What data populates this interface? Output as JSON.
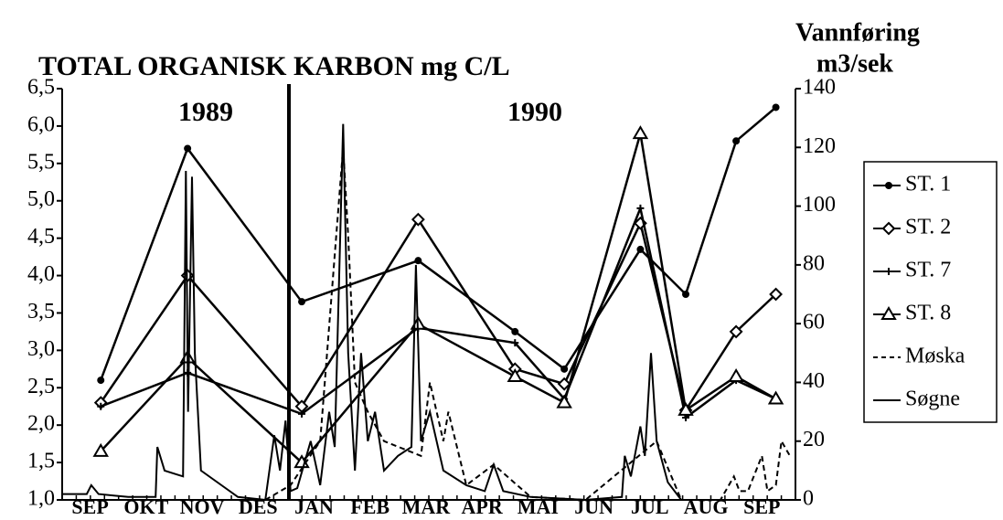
{
  "chart_data": {
    "type": "line",
    "title": "TOTAL ORGANISK KARBON mg C/L",
    "y2_label": [
      "Vannføring",
      "m3/sek"
    ],
    "annotations": [
      "1989",
      "1990"
    ],
    "categories": [
      "SEP",
      "OKT",
      "NOV",
      "DES",
      "JAN",
      "FEB",
      "MAR",
      "APR",
      "MAI",
      "JUN",
      "JUL",
      "AUG",
      "SEP"
    ],
    "xlim": [
      0,
      13.1
    ],
    "ylim": [
      1.0,
      6.5
    ],
    "yticks": [
      {
        "value": 1.0,
        "label": "1,0"
      },
      {
        "value": 1.5,
        "label": "1,5"
      },
      {
        "value": 2.0,
        "label": "2,0"
      },
      {
        "value": 2.5,
        "label": "2,5"
      },
      {
        "value": 3.0,
        "label": "3,0"
      },
      {
        "value": 3.5,
        "label": "3,5"
      },
      {
        "value": 4.0,
        "label": "4,0"
      },
      {
        "value": 4.5,
        "label": "4,5"
      },
      {
        "value": 5.0,
        "label": "5,0"
      },
      {
        "value": 5.5,
        "label": "5,5"
      },
      {
        "value": 6.0,
        "label": "6,0"
      },
      {
        "value": 6.5,
        "label": "6,5"
      }
    ],
    "y2lim": [
      0,
      140
    ],
    "y2ticks": [
      0,
      20,
      40,
      60,
      80,
      100,
      120,
      140
    ],
    "series": [
      {
        "name": "ST. 1",
        "color": "#000000",
        "marker": "dot",
        "x": [
          0.69,
          2.24,
          4.28,
          6.36,
          8.09,
          8.97,
          10.33,
          11.14,
          12.04,
          12.75
        ],
        "values": [
          2.6,
          5.7,
          3.65,
          4.2,
          3.25,
          2.75,
          4.35,
          3.75,
          5.8,
          6.25
        ]
      },
      {
        "name": "ST. 2",
        "color": "#000000",
        "marker": "diamond",
        "x": [
          0.69,
          2.24,
          4.28,
          6.36,
          8.09,
          8.97,
          10.33,
          11.14,
          12.04,
          12.75
        ],
        "values": [
          2.3,
          4.0,
          2.25,
          4.75,
          2.75,
          2.55,
          4.7,
          2.2,
          3.25,
          3.75
        ]
      },
      {
        "name": "ST. 7",
        "color": "#000000",
        "marker": "plus",
        "x": [
          0.69,
          2.24,
          4.28,
          6.36,
          8.09,
          8.97,
          10.33,
          11.14,
          12.04,
          12.75
        ],
        "values": [
          2.25,
          2.7,
          2.15,
          3.3,
          3.1,
          2.35,
          4.9,
          2.1,
          2.6,
          2.35
        ]
      },
      {
        "name": "ST. 8",
        "color": "#000000",
        "marker": "triangle",
        "x": [
          0.69,
          2.24,
          4.28,
          6.36,
          8.09,
          8.97,
          10.33,
          11.14,
          12.04,
          12.75
        ],
        "values": [
          1.65,
          2.9,
          1.5,
          3.35,
          2.65,
          2.3,
          5.9,
          2.2,
          2.65,
          2.35
        ]
      },
      {
        "name": "Møska",
        "color": "#000000",
        "axis": "y2",
        "dash": true,
        "x": [
          3.63,
          4.08,
          4.61,
          5.02,
          5.11,
          5.23,
          5.46,
          5.75,
          6.41,
          6.57,
          6.81,
          6.9,
          7.22,
          7.71,
          8.37,
          9.35,
          10.62,
          11.06,
          11.76,
          12.0,
          12.1,
          12.25,
          12.5,
          12.6,
          12.75,
          12.85,
          13.0
        ],
        "values": [
          0,
          5,
          20,
          120,
          90,
          40,
          30,
          20,
          15,
          40,
          20,
          30,
          5,
          12,
          1,
          0,
          20,
          0,
          0,
          8,
          3,
          3,
          15,
          3,
          5,
          20,
          15
        ]
      },
      {
        "name": "Søgne",
        "color": "#000000",
        "axis": "y2",
        "x": [
          0,
          0.44,
          0.52,
          0.65,
          1.18,
          1.67,
          1.7,
          1.83,
          1.99,
          2.16,
          2.21,
          2.25,
          2.32,
          2.37,
          2.48,
          3.14,
          3.63,
          3.79,
          3.89,
          3.99,
          4.08,
          4.2,
          4.44,
          4.61,
          4.77,
          4.87,
          5.02,
          5.11,
          5.23,
          5.34,
          5.46,
          5.59,
          5.75,
          6.0,
          6.24,
          6.32,
          6.41,
          6.57,
          6.81,
          7.22,
          7.55,
          7.71,
          7.88,
          8.37,
          9.35,
          10.0,
          10.05,
          10.16,
          10.33,
          10.41,
          10.52,
          10.62,
          10.82,
          11.06
        ],
        "values": [
          2,
          2,
          5,
          2,
          1,
          1,
          18,
          10,
          9,
          8,
          112,
          30,
          110,
          50,
          10,
          1,
          0,
          22,
          10,
          27,
          3,
          4,
          20,
          5,
          30,
          18,
          128,
          50,
          10,
          50,
          20,
          30,
          10,
          15,
          18,
          80,
          20,
          30,
          10,
          5,
          3,
          12,
          3,
          1,
          0,
          1,
          15,
          8,
          25,
          15,
          50,
          20,
          6,
          0
        ]
      }
    ]
  }
}
